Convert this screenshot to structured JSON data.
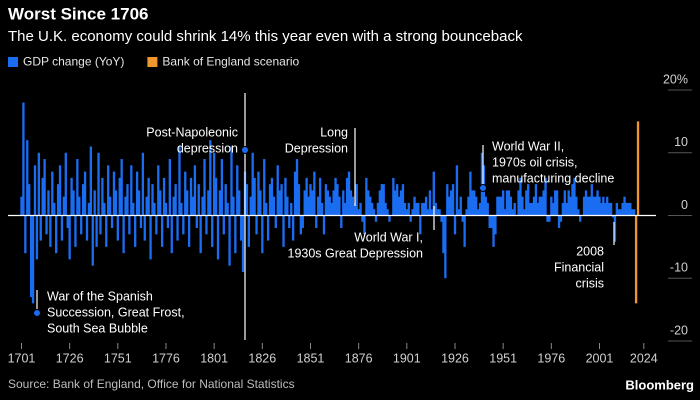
{
  "chart_data": {
    "type": "bar",
    "title": "Worst Since 1706",
    "subtitle": "The U.K. economy could shrink 14% this year even with a strong bounceback",
    "source": "Source: Bank of England, Office for National Statistics",
    "brand": "Bloomberg",
    "xlim": [
      1694,
      2035
    ],
    "xticks": [
      1701,
      1726,
      1751,
      1776,
      1801,
      1826,
      1851,
      1876,
      1901,
      1926,
      1951,
      1976,
      2001,
      2024
    ],
    "ylim": [
      -20,
      20
    ],
    "yticks": [
      {
        "value": 20,
        "label": "20%"
      },
      10,
      0,
      -10,
      -20
    ],
    "legend": "top-left",
    "series": [
      {
        "name": "GDP change (YoY)",
        "color": "#1a6cf0",
        "x": [
          1701,
          1702,
          1703,
          1704,
          1705,
          1706,
          1707,
          1708,
          1709,
          1710,
          1711,
          1712,
          1713,
          1714,
          1715,
          1716,
          1717,
          1718,
          1719,
          1720,
          1721,
          1722,
          1723,
          1724,
          1725,
          1726,
          1727,
          1728,
          1729,
          1730,
          1731,
          1732,
          1733,
          1734,
          1735,
          1736,
          1737,
          1738,
          1739,
          1740,
          1741,
          1742,
          1743,
          1744,
          1745,
          1746,
          1747,
          1748,
          1749,
          1750,
          1751,
          1752,
          1753,
          1754,
          1755,
          1756,
          1757,
          1758,
          1759,
          1760,
          1761,
          1762,
          1763,
          1764,
          1765,
          1766,
          1767,
          1768,
          1769,
          1770,
          1771,
          1772,
          1773,
          1774,
          1775,
          1776,
          1777,
          1778,
          1779,
          1780,
          1781,
          1782,
          1783,
          1784,
          1785,
          1786,
          1787,
          1788,
          1789,
          1790,
          1791,
          1792,
          1793,
          1794,
          1795,
          1796,
          1797,
          1798,
          1799,
          1800,
          1801,
          1802,
          1803,
          1804,
          1805,
          1806,
          1807,
          1808,
          1809,
          1810,
          1811,
          1812,
          1813,
          1814,
          1815,
          1816,
          1817,
          1818,
          1819,
          1820,
          1821,
          1822,
          1823,
          1824,
          1825,
          1826,
          1827,
          1828,
          1829,
          1830,
          1831,
          1832,
          1833,
          1834,
          1835,
          1836,
          1837,
          1838,
          1839,
          1840,
          1841,
          1842,
          1843,
          1844,
          1845,
          1846,
          1847,
          1848,
          1849,
          1850,
          1851,
          1852,
          1853,
          1854,
          1855,
          1856,
          1857,
          1858,
          1859,
          1860,
          1861,
          1862,
          1863,
          1864,
          1865,
          1866,
          1867,
          1868,
          1869,
          1870,
          1871,
          1872,
          1873,
          1874,
          1875,
          1876,
          1877,
          1878,
          1879,
          1880,
          1881,
          1882,
          1883,
          1884,
          1885,
          1886,
          1887,
          1888,
          1889,
          1890,
          1891,
          1892,
          1893,
          1894,
          1895,
          1896,
          1897,
          1898,
          1899,
          1900,
          1901,
          1902,
          1903,
          1904,
          1905,
          1906,
          1907,
          1908,
          1909,
          1910,
          1911,
          1912,
          1913,
          1914,
          1915,
          1916,
          1917,
          1918,
          1919,
          1920,
          1921,
          1922,
          1923,
          1924,
          1925,
          1926,
          1927,
          1928,
          1929,
          1930,
          1931,
          1932,
          1933,
          1934,
          1935,
          1936,
          1937,
          1938,
          1939,
          1940,
          1941,
          1942,
          1943,
          1944,
          1945,
          1946,
          1947,
          1948,
          1949,
          1950,
          1951,
          1952,
          1953,
          1954,
          1955,
          1956,
          1957,
          1958,
          1959,
          1960,
          1961,
          1962,
          1963,
          1964,
          1965,
          1966,
          1967,
          1968,
          1969,
          1970,
          1971,
          1972,
          1973,
          1974,
          1975,
          1976,
          1977,
          1978,
          1979,
          1980,
          1981,
          1982,
          1983,
          1984,
          1985,
          1986,
          1987,
          1988,
          1989,
          1990,
          1991,
          1992,
          1993,
          1994,
          1995,
          1996,
          1997,
          1998,
          1999,
          2000,
          2001,
          2002,
          2003,
          2004,
          2005,
          2006,
          2007,
          2008,
          2009,
          2010,
          2011,
          2012,
          2013,
          2014,
          2015,
          2016,
          2017,
          2018,
          2019
        ],
        "values": [
          3,
          18,
          -6,
          12,
          5,
          -13,
          -14,
          8,
          -7,
          10,
          -4,
          6,
          9,
          -3,
          4,
          -5,
          7,
          2,
          -6,
          5,
          8,
          -4,
          3,
          10,
          -2,
          -7,
          6,
          4,
          -5,
          9,
          3,
          -3,
          5,
          7,
          -4,
          2,
          11,
          -8,
          4,
          -5,
          10,
          -3,
          6,
          2,
          -5,
          8,
          3,
          -2,
          7,
          4,
          -4,
          6,
          9,
          -6,
          3,
          5,
          -3,
          8,
          2,
          -5,
          7,
          4,
          -2,
          10,
          -4,
          3,
          6,
          -7,
          5,
          2,
          -3,
          8,
          4,
          -5,
          6,
          2,
          -2,
          9,
          -6,
          3,
          5,
          -4,
          11,
          2,
          -3,
          7,
          4,
          -5,
          6,
          3,
          8,
          -2,
          5,
          -6,
          3,
          9,
          -3,
          4,
          12,
          -5,
          10,
          6,
          -7,
          4,
          9,
          -3,
          5,
          2,
          -8,
          11,
          3,
          -6,
          8,
          4,
          -4,
          -9,
          7,
          5,
          -5,
          3,
          10,
          6,
          -3,
          7,
          4,
          -6,
          9,
          2,
          -4,
          5,
          6,
          3,
          -2,
          8,
          4,
          5,
          -5,
          6,
          3,
          -2,
          2,
          -4,
          7,
          9,
          5,
          -3,
          -2,
          4,
          6,
          3,
          5,
          4,
          7,
          -2,
          3,
          6,
          2,
          -3,
          5,
          4,
          3,
          2,
          4,
          6,
          5,
          3,
          -2,
          4,
          2,
          6,
          7,
          4,
          3,
          2,
          5,
          1,
          2,
          -1,
          -3,
          6,
          4,
          3,
          2,
          1,
          -1,
          2,
          4,
          5,
          5,
          2,
          1,
          -1,
          0,
          6,
          4,
          5,
          3,
          4,
          5,
          2,
          1,
          2,
          -1,
          1,
          3,
          2,
          2,
          -3,
          2,
          2,
          3,
          1,
          4,
          1,
          7,
          2,
          1,
          1,
          -1,
          -6,
          -10,
          5,
          3,
          4,
          5,
          -3,
          8,
          1,
          3,
          -1,
          -5,
          1,
          3,
          7,
          4,
          4,
          3,
          1,
          2,
          10,
          8,
          3,
          2,
          -2,
          -2,
          -5,
          -3,
          3,
          3,
          3,
          4,
          1,
          4,
          4,
          3,
          1,
          2,
          0,
          4,
          6,
          3,
          1,
          4,
          5,
          2,
          2,
          3,
          5,
          2,
          3,
          3,
          4,
          6,
          -1,
          -1,
          3,
          2,
          4,
          4,
          -2,
          -1,
          2,
          4,
          2,
          4,
          3,
          5,
          6,
          3,
          1,
          -1,
          0,
          3,
          4,
          3,
          3,
          5,
          3,
          3,
          4,
          3,
          2,
          3,
          2,
          3,
          2,
          2,
          -0.3,
          -4.2,
          2,
          1,
          1,
          2,
          3,
          2,
          2,
          2,
          1,
          1
        ]
      },
      {
        "name": "Bank of England scenario",
        "color": "#f0962e",
        "x": [
          2020,
          2021
        ],
        "values": [
          -14,
          15
        ]
      }
    ],
    "annotations": [
      {
        "lines": [
          "Post-Napoleonic",
          "depression"
        ]
      },
      {
        "lines": [
          "Long",
          "Depression"
        ]
      },
      {
        "lines": [
          "World War I,",
          "1930s Great Depression"
        ]
      },
      {
        "lines": [
          "World War II,",
          "1970s oil crisis,",
          "manufacturing decline"
        ]
      },
      {
        "lines": [
          "2008",
          "Financial",
          "crisis"
        ]
      },
      {
        "lines": [
          "War of the Spanish",
          "Succession, Great Frost,",
          "South Sea Bubble"
        ]
      }
    ]
  }
}
